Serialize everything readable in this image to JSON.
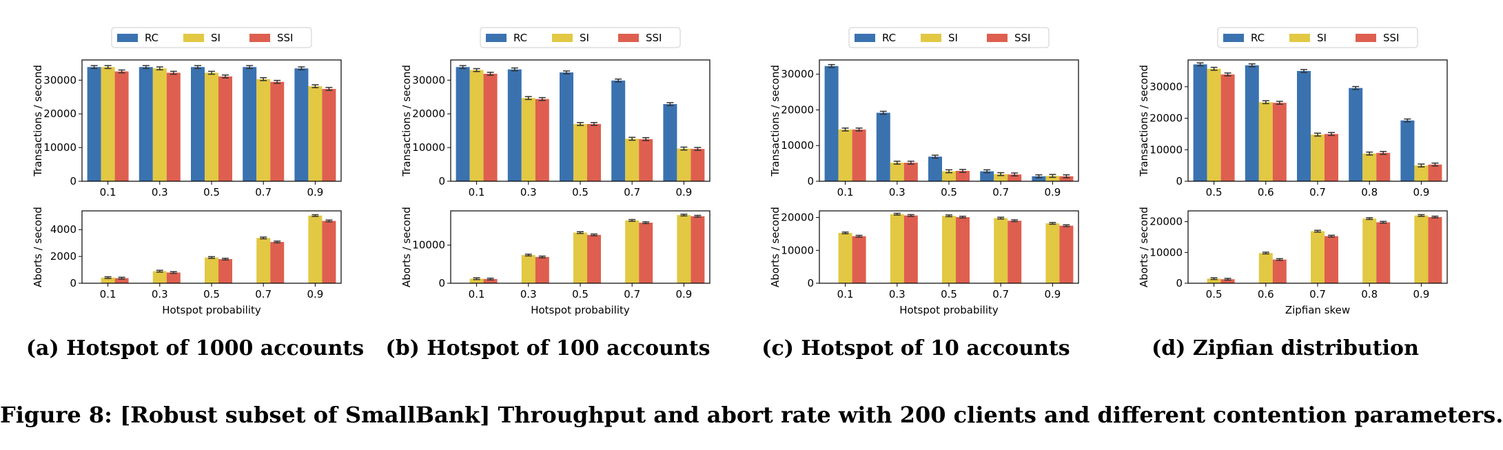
{
  "figure_caption": "Figure 8: [Robust subset of SmallBank] Throughput and abort rate with 200 clients and different contention parameters.",
  "colors": {
    "RC": "#3a72b0",
    "SI": "#e2c843",
    "SSI": "#de5f4f"
  },
  "legend": [
    "RC",
    "SI",
    "SSI"
  ],
  "chart_data": [
    {
      "type": "bar",
      "panel": "a",
      "caption": "(a) Hotspot of 1000 accounts",
      "categories": [
        "0.1",
        "0.3",
        "0.5",
        "0.7",
        "0.9"
      ],
      "xlabel": "Hotspot probability",
      "throughput": {
        "ylabel": "Transactions / second",
        "ylim": [
          0,
          36000
        ],
        "yticks": [
          0,
          10000,
          20000,
          30000
        ],
        "series": [
          {
            "name": "RC",
            "values": [
              33900,
              33900,
              33900,
              33900,
              33500
            ]
          },
          {
            "name": "SI",
            "values": [
              33900,
              33500,
              32200,
              30300,
              28200
            ]
          },
          {
            "name": "SSI",
            "values": [
              32600,
              32200,
              31100,
              29500,
              27400
            ]
          }
        ]
      },
      "aborts": {
        "ylabel": "Aborts / second",
        "ylim": [
          0,
          5400
        ],
        "yticks": [
          0,
          2000,
          4000
        ],
        "series": [
          {
            "name": "RC",
            "values": [
              0,
              0,
              0,
              0,
              0
            ]
          },
          {
            "name": "SI",
            "values": [
              420,
              900,
              1920,
              3380,
              5050
            ]
          },
          {
            "name": "SSI",
            "values": [
              380,
              800,
              1800,
              3080,
              4650
            ]
          }
        ]
      }
    },
    {
      "type": "bar",
      "panel": "b",
      "caption": "(b) Hotspot of 100 accounts",
      "categories": [
        "0.1",
        "0.3",
        "0.5",
        "0.7",
        "0.9"
      ],
      "xlabel": "Hotspot probability",
      "throughput": {
        "ylabel": "Transactions / second",
        "ylim": [
          0,
          36000
        ],
        "yticks": [
          0,
          10000,
          20000,
          30000
        ],
        "series": [
          {
            "name": "RC",
            "values": [
              33900,
              33200,
              32300,
              29900,
              22900
            ]
          },
          {
            "name": "SI",
            "values": [
              33000,
              24700,
              17000,
              12600,
              9700
            ]
          },
          {
            "name": "SSI",
            "values": [
              31900,
              24400,
              17000,
              12500,
              9600
            ]
          }
        ]
      },
      "aborts": {
        "ylabel": "Aborts / second",
        "ylim": [
          0,
          19000
        ],
        "yticks": [
          0,
          10000
        ],
        "series": [
          {
            "name": "RC",
            "values": [
              0,
              0,
              0,
              0,
              0
            ]
          },
          {
            "name": "SI",
            "values": [
              1200,
              7400,
              13300,
              16500,
              17900
            ]
          },
          {
            "name": "SSI",
            "values": [
              1100,
              6900,
              12700,
              15900,
              17600
            ]
          }
        ]
      }
    },
    {
      "type": "bar",
      "panel": "c",
      "caption": "(c) Hotspot of 10 accounts",
      "categories": [
        "0.1",
        "0.3",
        "0.5",
        "0.7",
        "0.9"
      ],
      "xlabel": "Hotspot probability",
      "throughput": {
        "ylabel": "Transactions / second",
        "ylim": [
          0,
          34000
        ],
        "yticks": [
          0,
          10000,
          20000,
          30000
        ],
        "series": [
          {
            "name": "RC",
            "values": [
              32300,
              19200,
              6900,
              2800,
              1400
            ]
          },
          {
            "name": "SI",
            "values": [
              14500,
              5200,
              2800,
              2000,
              1500
            ]
          },
          {
            "name": "SSI",
            "values": [
              14500,
              5200,
              2900,
              1900,
              1400
            ]
          }
        ]
      },
      "aborts": {
        "ylabel": "Aborts / second",
        "ylim": [
          0,
          22000
        ],
        "yticks": [
          0,
          10000,
          20000
        ],
        "series": [
          {
            "name": "RC",
            "values": [
              0,
              0,
              0,
              0,
              0
            ]
          },
          {
            "name": "SI",
            "values": [
              15300,
              21000,
              20500,
              19800,
              18200
            ]
          },
          {
            "name": "SSI",
            "values": [
              14300,
              20600,
              20100,
              19000,
              17500
            ]
          }
        ]
      }
    },
    {
      "type": "bar",
      "panel": "d",
      "caption": "(d) Zipfian distribution",
      "categories": [
        "0.5",
        "0.6",
        "0.7",
        "0.8",
        "0.9"
      ],
      "xlabel": "Zipfian skew",
      "throughput": {
        "ylabel": "Transactions / second",
        "ylim": [
          0,
          38500
        ],
        "yticks": [
          0,
          10000,
          20000,
          30000
        ],
        "series": [
          {
            "name": "RC",
            "values": [
              37100,
              36800,
              35000,
              29600,
              19300
            ]
          },
          {
            "name": "SI",
            "values": [
              35700,
              25100,
              14800,
              8800,
              5000
            ]
          },
          {
            "name": "SSI",
            "values": [
              33900,
              24900,
              15000,
              9000,
              5300
            ]
          }
        ]
      },
      "aborts": {
        "ylabel": "Aborts / second",
        "ylim": [
          0,
          23500
        ],
        "yticks": [
          0,
          10000,
          20000
        ],
        "series": [
          {
            "name": "RC",
            "values": [
              0,
              0,
              0,
              0,
              0
            ]
          },
          {
            "name": "SI",
            "values": [
              1500,
              9800,
              16900,
              21000,
              22000
            ]
          },
          {
            "name": "SSI",
            "values": [
              1300,
              7700,
              15300,
              19800,
              21500
            ]
          }
        ]
      }
    }
  ]
}
